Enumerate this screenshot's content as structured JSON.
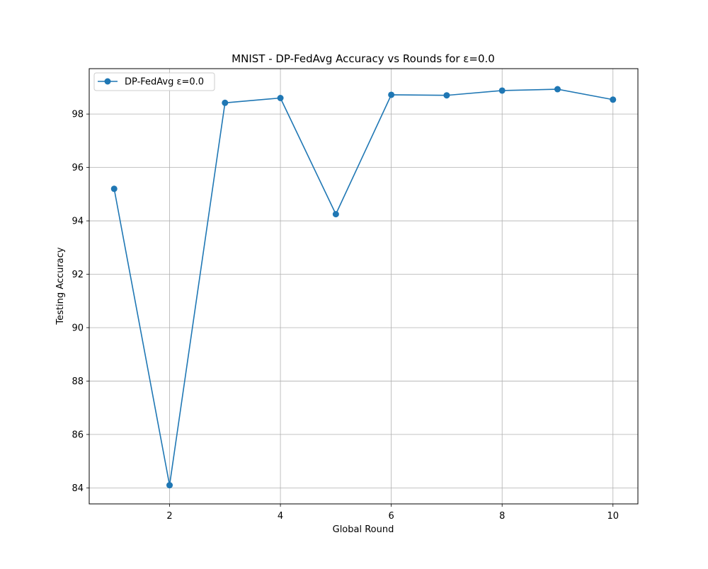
{
  "chart_data": {
    "type": "line",
    "title": "MNIST - DP-FedAvg Accuracy vs Rounds for ε=0.0",
    "xlabel": "Global Round",
    "ylabel": "Testing Accuracy",
    "xlim": [
      0.55,
      10.45
    ],
    "ylim": [
      83.4,
      99.7
    ],
    "xticks": [
      2,
      4,
      6,
      8,
      10
    ],
    "yticks": [
      84,
      86,
      88,
      90,
      92,
      94,
      96,
      98
    ],
    "grid": true,
    "legend_position": "upper-left",
    "series": [
      {
        "name": "DP-FedAvg ε=0.0",
        "color": "#1f77b4",
        "marker": "circle",
        "x": [
          1,
          2,
          3,
          4,
          5,
          6,
          7,
          8,
          9,
          10
        ],
        "y": [
          95.2,
          84.1,
          98.42,
          98.6,
          94.25,
          98.72,
          98.7,
          98.88,
          98.93,
          98.54
        ]
      }
    ]
  }
}
